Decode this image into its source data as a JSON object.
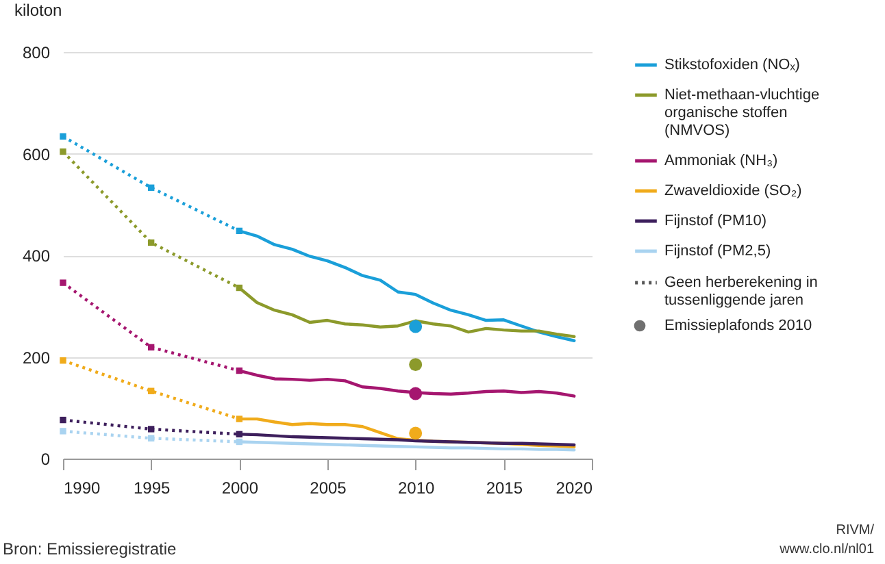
{
  "chart_data": {
    "type": "line",
    "ylabel": "kiloton",
    "xlim": [
      1990,
      2020
    ],
    "xticks": [
      1990,
      1995,
      2000,
      2005,
      2010,
      2015,
      2020
    ],
    "ylim": [
      0,
      800
    ],
    "yticks": [
      0,
      200,
      400,
      600,
      800
    ],
    "grid": "y",
    "legend": "right",
    "line_style": "solid",
    "marker": "none",
    "annotations": [
      "Geen herberekening in tussenliggende jaren",
      "Emissieplafonds 2010",
      "Bron: Emissieregistratie",
      "RIVM/",
      "www.clo.nl/nl01"
    ],
    "series": [
      {
        "name": "Stikstofoxiden (NOₓ)",
        "color": "#1a9fd9",
        "x": [
          2000,
          2001,
          2002,
          2003,
          2004,
          2005,
          2006,
          2007,
          2008,
          2009,
          2010,
          2011,
          2012,
          2013,
          2014,
          2015,
          2016,
          2017,
          2018,
          2019
        ],
        "values": [
          448,
          438,
          421,
          412,
          398,
          389,
          376,
          360,
          351,
          328,
          323,
          306,
          292,
          283,
          272,
          273,
          261,
          249,
          240,
          232
        ]
      },
      {
        "name": "Niet-methaan-vluchtige organische stoffen (NMVOS)",
        "color": "#8c9a2b",
        "x": [
          2000,
          2001,
          2002,
          2003,
          2004,
          2005,
          2006,
          2007,
          2008,
          2009,
          2010,
          2011,
          2012,
          2013,
          2014,
          2015,
          2016,
          2017,
          2018,
          2019
        ],
        "values": [
          336,
          307,
          292,
          283,
          268,
          272,
          265,
          263,
          259,
          261,
          271,
          265,
          261,
          249,
          256,
          253,
          251,
          251,
          245,
          240
        ]
      },
      {
        "name": "Ammoniak (NH₃)",
        "color": "#a5166f",
        "x": [
          2000,
          2001,
          2002,
          2003,
          2004,
          2005,
          2006,
          2007,
          2008,
          2009,
          2010,
          2011,
          2012,
          2013,
          2014,
          2015,
          2016,
          2017,
          2018,
          2019
        ],
        "values": [
          173,
          164,
          157,
          156,
          154,
          156,
          153,
          141,
          138,
          133,
          130,
          128,
          127,
          129,
          132,
          133,
          130,
          132,
          129,
          123
        ]
      },
      {
        "name": "Zwaveldioxide (SO₂)",
        "color": "#f0ab1b",
        "x": [
          2000,
          2001,
          2002,
          2003,
          2004,
          2005,
          2006,
          2007,
          2008,
          2009,
          2010,
          2011,
          2012,
          2013,
          2014,
          2015,
          2016,
          2017,
          2018,
          2019
        ],
        "values": [
          78,
          78,
          72,
          67,
          69,
          67,
          67,
          63,
          51,
          39,
          36,
          34,
          33,
          32,
          31,
          30,
          28,
          26,
          25,
          23
        ]
      },
      {
        "name": "Fijnstof (PM10)",
        "color": "#3d1f5c",
        "x": [
          2000,
          2001,
          2002,
          2003,
          2004,
          2005,
          2006,
          2007,
          2008,
          2009,
          2010,
          2011,
          2012,
          2013,
          2014,
          2015,
          2016,
          2017,
          2018,
          2019
        ],
        "values": [
          48,
          47,
          45,
          43,
          42,
          41,
          40,
          39,
          38,
          37,
          35,
          34,
          33,
          32,
          31,
          30,
          30,
          29,
          28,
          27
        ]
      },
      {
        "name": "Fijnstof (PM2,5)",
        "color": "#a9d3f0",
        "x": [
          2000,
          2001,
          2002,
          2003,
          2004,
          2005,
          2006,
          2007,
          2008,
          2009,
          2010,
          2011,
          2012,
          2013,
          2014,
          2015,
          2016,
          2017,
          2018,
          2019
        ],
        "values": [
          33,
          32,
          31,
          30,
          29,
          28,
          27,
          26,
          25,
          24,
          23,
          22,
          21,
          21,
          20,
          19,
          19,
          18,
          18,
          17
        ]
      },
      {
        "type": "line",
        "line_style": "dotted",
        "marker": "square",
        "color": "#1a9fd9",
        "x": [
          1990,
          1995,
          2000
        ],
        "values": [
          634,
          533,
          448
        ]
      },
      {
        "type": "line",
        "line_style": "dotted",
        "marker": "square",
        "color": "#8c9a2b",
        "x": [
          1990,
          1995,
          2000
        ],
        "values": [
          604,
          425,
          336
        ]
      },
      {
        "type": "line",
        "line_style": "dotted",
        "marker": "square",
        "color": "#a5166f",
        "x": [
          1990,
          1995,
          2000
        ],
        "values": [
          346,
          219,
          173
        ]
      },
      {
        "type": "line",
        "line_style": "dotted",
        "marker": "square",
        "color": "#f0ab1b",
        "x": [
          1990,
          1995,
          2000
        ],
        "values": [
          193,
          133,
          78
        ]
      },
      {
        "type": "line",
        "line_style": "dotted",
        "marker": "square",
        "color": "#3d1f5c",
        "x": [
          1990,
          1995,
          2000
        ],
        "values": [
          76,
          58,
          48
        ]
      },
      {
        "type": "line",
        "line_style": "dotted",
        "marker": "square",
        "color": "#a9d3f0",
        "x": [
          1990,
          1995,
          2000
        ],
        "values": [
          54,
          40,
          33
        ]
      },
      {
        "type": "scatter",
        "marker": "circle",
        "x": [
          2010,
          2010,
          2010,
          2010
        ],
        "values": [
          260,
          185,
          128,
          50
        ],
        "colors": [
          "#1a9fd9",
          "#8c9a2b",
          "#a5166f",
          "#f0ab1b"
        ]
      }
    ]
  }
}
